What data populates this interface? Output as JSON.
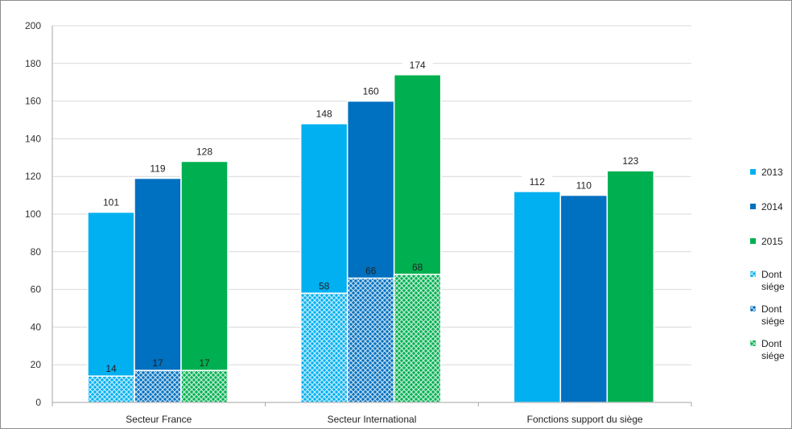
{
  "chart_data": {
    "type": "bar",
    "title": "",
    "xlabel": "",
    "ylabel": "",
    "ylim": [
      0,
      200
    ],
    "yticks": [
      0,
      20,
      40,
      60,
      80,
      100,
      120,
      140,
      160,
      180,
      200
    ],
    "grid": true,
    "legend_position": "right",
    "categories": [
      "Secteur France",
      "Secteur International",
      "Fonctions support du siège"
    ],
    "series": [
      {
        "name": "2013",
        "values": [
          101,
          148,
          112
        ],
        "color": "#00b0f0"
      },
      {
        "name": "2014",
        "values": [
          119,
          160,
          110
        ],
        "color": "#0070c0"
      },
      {
        "name": "2015",
        "values": [
          128,
          174,
          123
        ],
        "color": "#00b050"
      }
    ],
    "overlay_series": [
      {
        "name": "Dont siége",
        "values": [
          14,
          58,
          null
        ],
        "color": "#00b0f0",
        "pattern": "hatched"
      },
      {
        "name": "Dont siége",
        "values": [
          17,
          66,
          null
        ],
        "color": "#0070c0",
        "pattern": "hatched"
      },
      {
        "name": "Dont siége",
        "values": [
          17,
          68,
          null
        ],
        "color": "#00b050",
        "pattern": "hatched"
      }
    ]
  }
}
